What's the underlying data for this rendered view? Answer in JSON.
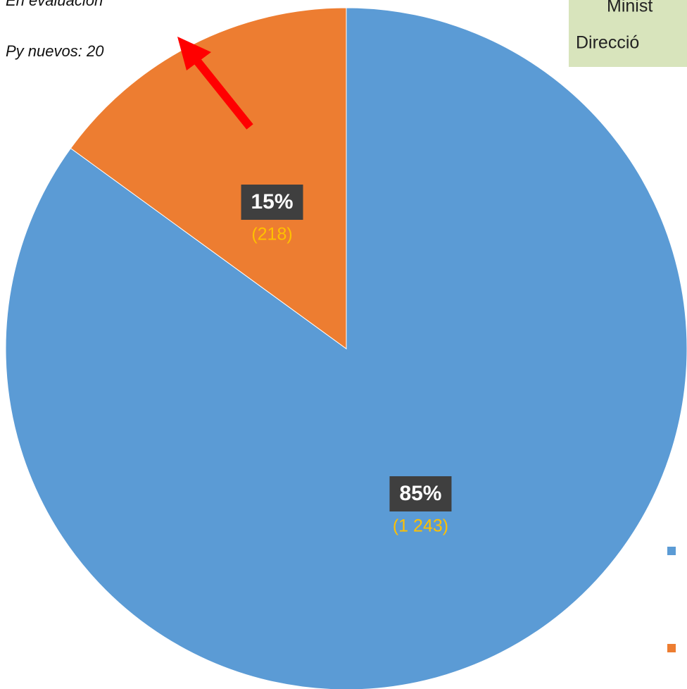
{
  "chart_data": {
    "type": "pie",
    "values": [
      85,
      15
    ],
    "value_labels": [
      "85%",
      "15%"
    ],
    "count_values": [
      1243,
      218
    ],
    "count_labels": [
      "(1 243)",
      "(218)"
    ],
    "colors": [
      "#5b9bd5",
      "#ed7d31"
    ],
    "annotations": [
      "En evaluación",
      "Py nuevos: 20"
    ],
    "header_lines": [
      "Minist",
      "Direcció"
    ]
  }
}
